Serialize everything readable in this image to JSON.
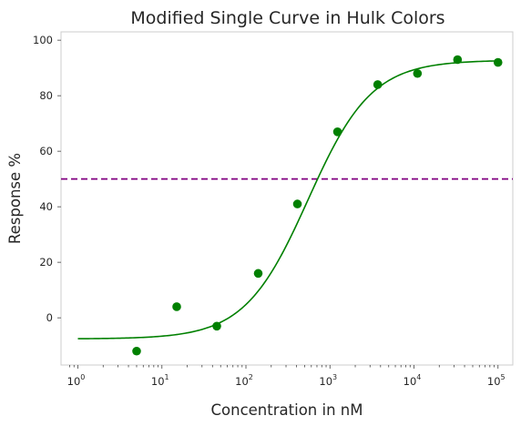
{
  "chart_data": {
    "type": "scatter",
    "title": "Modified Single Curve in Hulk Colors",
    "xlabel": "Concentration in nM",
    "ylabel": "Response %",
    "x_scale": "log",
    "x_range": [
      0.63,
      150000
    ],
    "y_range": [
      -17,
      103
    ],
    "x_ticks": [
      {
        "base": "10",
        "exp": "0",
        "value": 1
      },
      {
        "base": "10",
        "exp": "1",
        "value": 10
      },
      {
        "base": "10",
        "exp": "2",
        "value": 100
      },
      {
        "base": "10",
        "exp": "3",
        "value": 1000
      },
      {
        "base": "10",
        "exp": "4",
        "value": 10000
      },
      {
        "base": "10",
        "exp": "5",
        "value": 100000
      }
    ],
    "y_ticks": [
      "0",
      "20",
      "40",
      "60",
      "80",
      "100"
    ],
    "grid": false,
    "points": {
      "color": "#008000",
      "x": [
        5,
        15,
        45,
        140,
        410,
        1230,
        3700,
        11000,
        33000,
        100000
      ],
      "y": [
        -12,
        4,
        -3,
        16,
        41,
        67,
        84,
        88,
        93,
        92
      ]
    },
    "fit_curve": {
      "color": "#008000",
      "bottom": -7.6,
      "top": 92.8,
      "ec50": 550,
      "hill": 1.15,
      "x_from": 1,
      "x_to": 100000
    },
    "reference_line": {
      "y": 50,
      "color": "#800080",
      "style": "dashed"
    }
  }
}
